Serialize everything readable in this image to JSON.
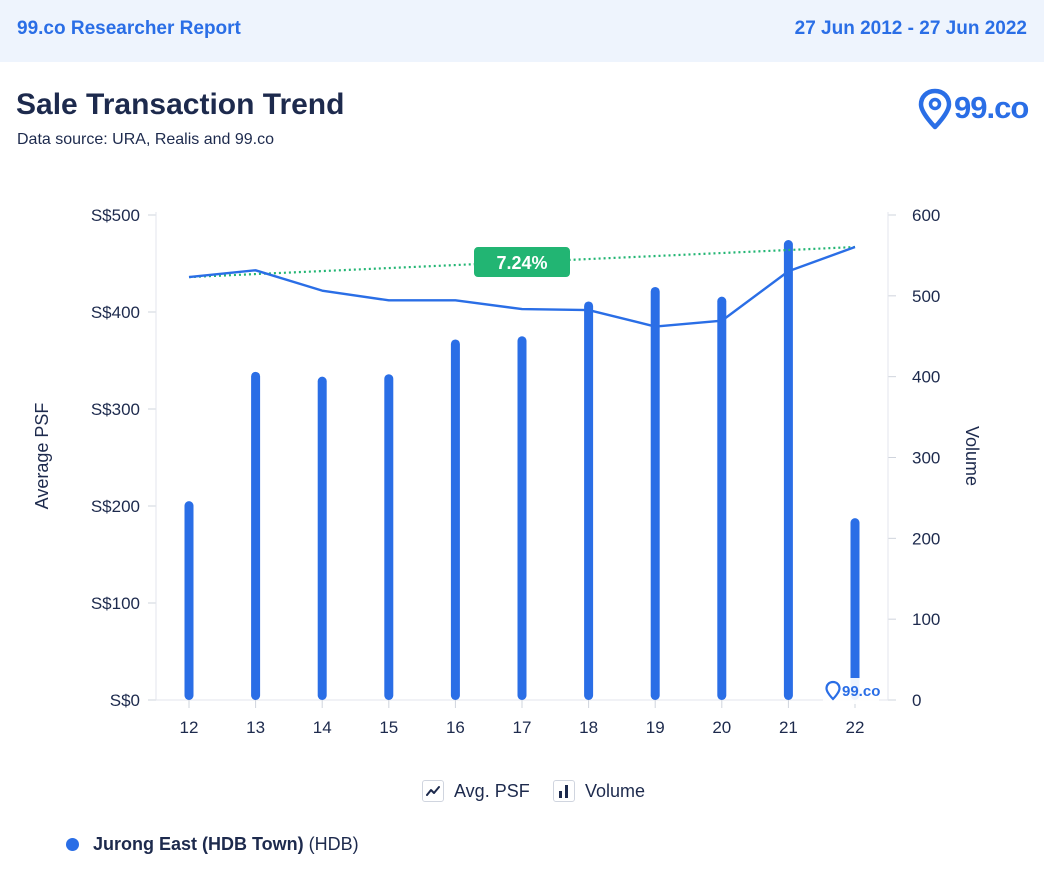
{
  "header": {
    "brand": "99.co Researcher Report",
    "date_range": "27 Jun 2012 - 27 Jun 2022"
  },
  "report": {
    "title": "Sale Transaction Trend",
    "source": "Data source: URA, Realis and 99.co"
  },
  "logo": {
    "text": "99.co",
    "icon": "map-pin-icon",
    "watermark_text": "99.co"
  },
  "colors": {
    "accent": "#2a6ee6",
    "trend": "#22b573",
    "text": "#1d2a4d",
    "grid": "#e3e6ec"
  },
  "chart_data": {
    "type": "bar",
    "categories": [
      "12",
      "13",
      "14",
      "15",
      "16",
      "17",
      "18",
      "19",
      "20",
      "21",
      "22"
    ],
    "series": [
      {
        "name": "Volume",
        "type": "bar",
        "axis": "right",
        "values": [
          246,
          406,
          400,
          403,
          446,
          450,
          493,
          511,
          499,
          569,
          225
        ]
      },
      {
        "name": "Avg. PSF",
        "type": "line",
        "axis": "left",
        "values": [
          436,
          443,
          422,
          412,
          412,
          403,
          402,
          385,
          391,
          442,
          467
        ]
      }
    ],
    "trendline": {
      "start": 436,
      "end": 467,
      "label": "7.24%"
    },
    "ylabel": "Average PSF",
    "y2label": "Volume",
    "ylim": [
      0,
      500
    ],
    "y2lim": [
      0,
      600
    ],
    "yticks": [
      "S$0",
      "S$100",
      "S$200",
      "S$300",
      "S$400",
      "S$500"
    ],
    "y2ticks": [
      "0",
      "100",
      "200",
      "300",
      "400",
      "500",
      "600"
    ],
    "grid": false
  },
  "legend": {
    "items": [
      {
        "label": "Avg. PSF",
        "icon": "line-chart-icon"
      },
      {
        "label": "Volume",
        "icon": "bar-chart-icon"
      }
    ]
  },
  "location": {
    "name": "Jurong East (HDB Town)",
    "type": "(HDB)"
  }
}
